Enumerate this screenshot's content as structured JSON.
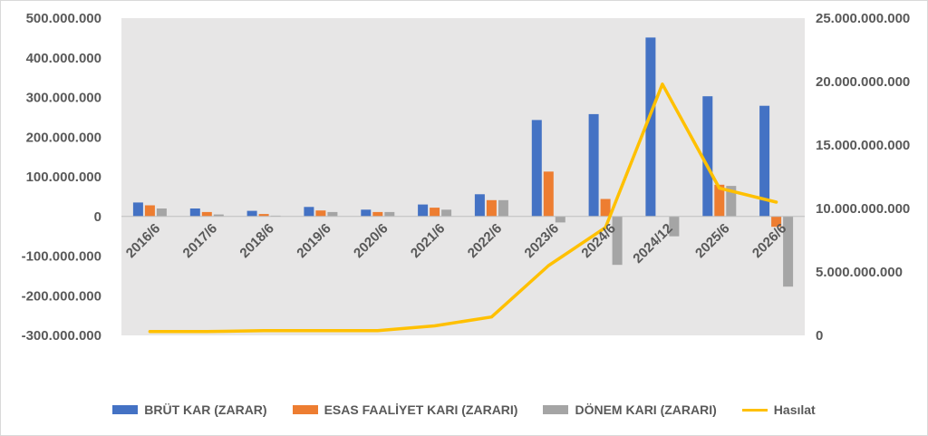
{
  "colors": {
    "brut": "#4472C4",
    "esas": "#ED7D31",
    "donem": "#A5A5A5",
    "hasilat": "#FFC000",
    "plot_bg": "#E7E6E6"
  },
  "chart_data": {
    "type": "bar",
    "categories": [
      "2016/6",
      "2017/6",
      "2018/6",
      "2019/6",
      "2020/6",
      "2021/6",
      "2022/6",
      "2023/6",
      "2024/6",
      "2024/12",
      "2025/6",
      "2026/6"
    ],
    "series": [
      {
        "name": "BRÜT KAR (ZARAR)",
        "axis": "left",
        "kind": "bar",
        "values": [
          35000000,
          20000000,
          14000000,
          24000000,
          17000000,
          30000000,
          56000000,
          243000000,
          258000000,
          451000000,
          303000000,
          279000000
        ]
      },
      {
        "name": "ESAS FAALİYET KARI (ZARARI)",
        "axis": "left",
        "kind": "bar",
        "values": [
          28000000,
          11000000,
          6000000,
          15000000,
          11000000,
          22000000,
          41000000,
          113000000,
          44000000,
          0,
          80000000,
          -26000000
        ]
      },
      {
        "name": "DÖNEM KARI (ZARARI)",
        "axis": "left",
        "kind": "bar",
        "values": [
          20000000,
          5000000,
          2000000,
          11000000,
          11000000,
          17000000,
          41000000,
          -15000000,
          -122000000,
          -50000000,
          77000000,
          -177000000
        ]
      },
      {
        "name": "Hasılat",
        "axis": "right",
        "kind": "line",
        "values": [
          300000000,
          300000000,
          380000000,
          380000000,
          380000000,
          750000000,
          1450000000,
          5500000000,
          8500000000,
          19800000000,
          11600000000,
          10500000000
        ]
      }
    ],
    "y_left": {
      "min": -300000000,
      "max": 500000000,
      "step": 100000000,
      "tick_labels": [
        "500.000.000",
        "400.000.000",
        "300.000.000",
        "200.000.000",
        "100.000.000",
        "0",
        "-100.000.000",
        "-200.000.000",
        "-300.000.000"
      ]
    },
    "y_right": {
      "min": 0,
      "max": 25000000000,
      "step": 5000000000,
      "tick_labels": [
        "25.000.000.000",
        "20.000.000.000",
        "15.000.000.000",
        "10.000.000.000",
        "5.000.000.000",
        "0"
      ]
    },
    "grid": false,
    "legend_position": "bottom",
    "title": "",
    "xlabel": "",
    "ylabel": ""
  }
}
